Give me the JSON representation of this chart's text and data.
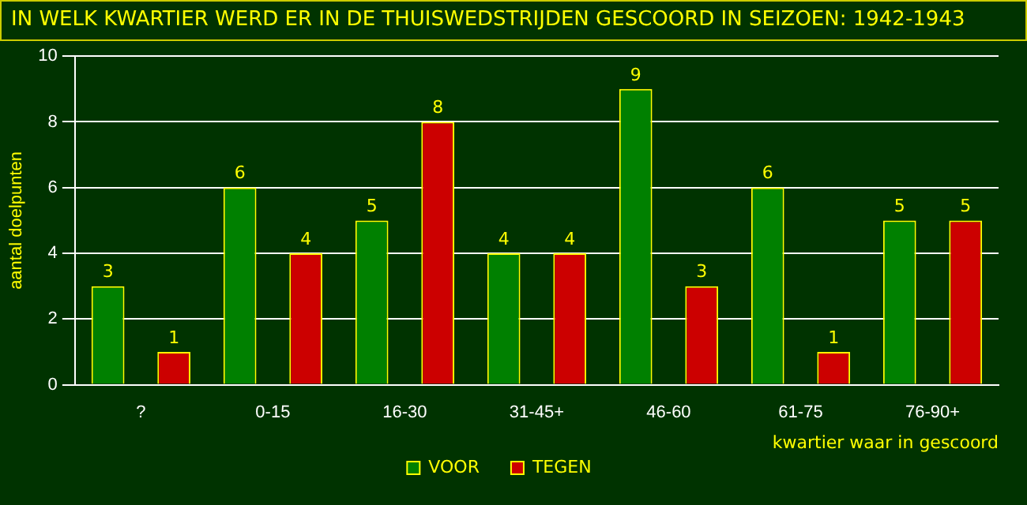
{
  "chart_data": {
    "type": "bar",
    "title": "IN WELK KWARTIER WERD ER IN DE THUISWEDSTRIJDEN GESCOORD IN SEIZOEN: 1942-1943",
    "xlabel": "kwartier waar in gescoord",
    "ylabel": "aantal doelpunten",
    "categories": [
      "?",
      "0-15",
      "16-30",
      "31-45+",
      "46-60",
      "61-75",
      "76-90+"
    ],
    "series": [
      {
        "name": "VOOR",
        "color": "#008000",
        "values": [
          3,
          6,
          5,
          4,
          9,
          6,
          5
        ]
      },
      {
        "name": "TEGEN",
        "color": "#cc0000",
        "values": [
          1,
          4,
          8,
          4,
          3,
          1,
          5
        ]
      }
    ],
    "ylim": [
      0,
      10
    ],
    "yticks": [
      0,
      2,
      4,
      6,
      8,
      10
    ],
    "grid": "y",
    "legend": "bottom",
    "data_labels": true
  }
}
